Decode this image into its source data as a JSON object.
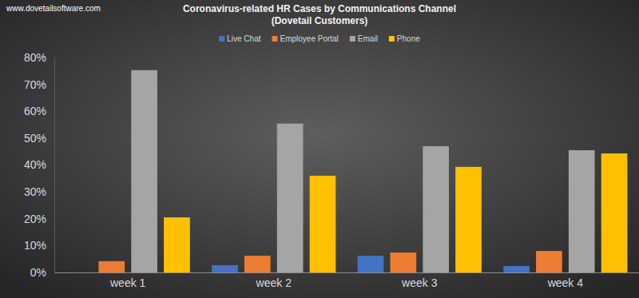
{
  "chart_data": {
    "type": "bar",
    "title": "Coronavirus-related HR Cases by Communications Channel",
    "subtitle": "(Dovetail Customers)",
    "annotations": [
      "www.dovetailsoftware.com"
    ],
    "categories": [
      "week 1",
      "week 2",
      "week 3",
      "week 4"
    ],
    "series": [
      {
        "name": "Live Chat",
        "color": "#4472c4",
        "values": [
          0,
          2.7,
          6.2,
          2.4
        ]
      },
      {
        "name": "Employee Portal",
        "color": "#ed7d31",
        "values": [
          4.2,
          6.2,
          7.4,
          8.0
        ]
      },
      {
        "name": "Email",
        "color": "#a5a5a5",
        "values": [
          75.3,
          55.4,
          47.0,
          45.5
        ]
      },
      {
        "name": "Phone",
        "color": "#ffc000",
        "values": [
          20.5,
          36.0,
          39.3,
          44.3
        ]
      }
    ],
    "ylim": [
      0,
      80
    ],
    "yticks": [
      {
        "value": 0,
        "label": "0%"
      },
      {
        "value": 10,
        "label": "10%"
      },
      {
        "value": 20,
        "label": "20%"
      },
      {
        "value": 30,
        "label": "30%"
      },
      {
        "value": 40,
        "label": "40%"
      },
      {
        "value": 50,
        "label": "50%"
      },
      {
        "value": 60,
        "label": "60%"
      },
      {
        "value": 70,
        "label": "70%"
      },
      {
        "value": 80,
        "label": "80%"
      }
    ],
    "grid": false,
    "legend": "top"
  }
}
